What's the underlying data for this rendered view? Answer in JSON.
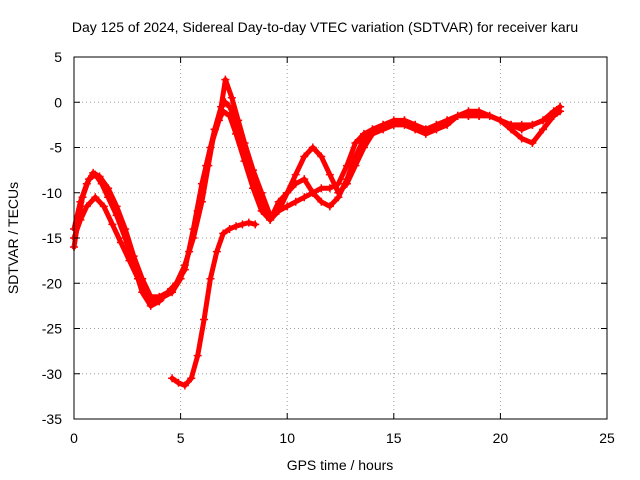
{
  "chart_data": {
    "type": "line",
    "title": "Day 125 of 2024, Sidereal Day-to-day VTEC variation (SDTVAR) for receiver karu",
    "xlabel": "GPS time / hours",
    "ylabel": "SDTVAR / TECUs",
    "xlim": [
      0,
      25
    ],
    "ylim": [
      -35,
      5
    ],
    "xticks": [
      0,
      5,
      10,
      15,
      20,
      25
    ],
    "yticks": [
      5,
      0,
      -5,
      -10,
      -15,
      -20,
      -25,
      -30,
      -35
    ],
    "xtick_labels": [
      "0",
      "5",
      "10",
      "15",
      "20",
      "25"
    ],
    "ytick_labels": [
      "5",
      "0",
      "-5",
      "-10",
      "-15",
      "-20",
      "-25",
      "-30",
      "-35"
    ],
    "grid": true,
    "legend": "none",
    "marker": "plus",
    "color": "#ff0000",
    "series": [
      {
        "name": "track-1",
        "x": [
          0.0,
          0.2,
          0.4,
          0.7,
          1.0,
          1.3,
          1.6,
          2.0,
          2.4,
          2.8,
          3.2,
          3.6,
          4.0,
          4.4,
          4.8,
          5.2,
          5.6,
          6.0,
          6.3,
          6.6,
          6.9,
          7.1,
          7.3,
          7.6,
          8.0,
          8.4,
          8.8,
          9.2,
          9.6,
          10.0,
          10.4,
          10.8,
          11.2,
          11.6,
          12.0,
          12.4,
          12.8,
          13.2,
          13.6,
          14.0,
          14.5,
          15.0,
          15.5,
          16.0,
          16.5,
          17.0,
          17.5,
          18.0,
          18.5,
          19.0,
          19.5,
          20.0,
          20.5,
          21.0,
          21.5,
          22.0,
          22.5,
          22.8
        ],
        "y": [
          -16,
          -13,
          -10.5,
          -8.5,
          -8.0,
          -9.0,
          -10.5,
          -12.5,
          -15,
          -18,
          -21,
          -22.5,
          -22,
          -21,
          -20,
          -18,
          -15,
          -11,
          -7,
          -3,
          -0.5,
          0,
          -0.5,
          -2,
          -5,
          -8,
          -11,
          -13,
          -12,
          -10,
          -8,
          -6,
          -5,
          -6,
          -8,
          -10,
          -9,
          -7,
          -5,
          -3.5,
          -3,
          -2.5,
          -2,
          -2.5,
          -3,
          -2.5,
          -2,
          -1.5,
          -1.5,
          -1.5,
          -1.5,
          -2,
          -3,
          -4,
          -4.5,
          -3,
          -1.5,
          -0.5
        ]
      },
      {
        "name": "track-2",
        "x": [
          0.0,
          0.3,
          0.6,
          1.0,
          1.4,
          1.8,
          2.2,
          2.6,
          3.0,
          3.4,
          3.8,
          4.2,
          4.6,
          5.0,
          5.4,
          5.8,
          6.2,
          6.6,
          7.0,
          7.3,
          7.6,
          8.0,
          8.4,
          8.8,
          9.2,
          9.6,
          10.0,
          10.4,
          10.8,
          11.2,
          11.6,
          12.0,
          12.4,
          12.8,
          13.2,
          13.6,
          14.0,
          14.5,
          15.0,
          15.5,
          16.0,
          16.5,
          17.0,
          17.5,
          18.0,
          18.5,
          19.0,
          19.5,
          20.0,
          20.5,
          21.0,
          21.5,
          22.0,
          22.5,
          22.8
        ],
        "y": [
          -15,
          -13,
          -11.5,
          -10.5,
          -11.5,
          -13.5,
          -15.5,
          -17.5,
          -19.5,
          -21.5,
          -22,
          -21.5,
          -21,
          -19.5,
          -16.5,
          -12,
          -7,
          -3,
          -1,
          -1.5,
          -3.5,
          -6.5,
          -9.5,
          -12,
          -13,
          -11,
          -10,
          -9,
          -8.5,
          -10,
          -11,
          -11.5,
          -10.5,
          -8.5,
          -6,
          -4,
          -3,
          -2.5,
          -2.5,
          -2.5,
          -3,
          -3.5,
          -3,
          -2.5,
          -1.5,
          -1,
          -1,
          -1.5,
          -2,
          -2.5,
          -2.5,
          -2.5,
          -2,
          -1.5,
          -1
        ]
      },
      {
        "name": "track-3",
        "x": [
          0.0,
          0.3,
          0.6,
          0.9,
          1.2,
          1.6,
          2.0,
          2.4,
          2.8,
          3.2,
          3.6,
          4.0,
          4.4,
          4.8,
          5.2,
          5.6,
          6.0,
          6.4,
          6.8,
          7.1,
          7.4,
          7.7,
          8.0,
          8.4,
          8.8,
          9.2,
          9.6,
          10.0,
          10.4,
          10.8,
          11.2,
          11.6,
          12.0,
          12.4,
          12.8,
          13.2,
          13.6,
          14.0,
          14.5,
          15.0,
          15.5,
          16.0,
          16.5,
          17.0,
          17.5,
          18.0,
          18.5,
          19.0,
          19.5,
          20.0,
          20.5,
          21.0,
          21.5,
          22.0,
          22.5,
          22.8
        ],
        "y": [
          -14,
          -11,
          -9,
          -7.8,
          -8.2,
          -9.5,
          -11.5,
          -14,
          -17,
          -19.5,
          -21.5,
          -21.5,
          -21,
          -20,
          -18.5,
          -14,
          -9,
          -5,
          -2,
          2.5,
          0.5,
          -2,
          -4.5,
          -7.5,
          -10,
          -12.5,
          -12,
          -11.5,
          -11,
          -10.5,
          -10,
          -9.5,
          -9.5,
          -9,
          -7,
          -4.5,
          -3.5,
          -3,
          -2.5,
          -2,
          -2,
          -2.5,
          -3,
          -2.5,
          -2,
          -1.5,
          -1.5,
          -1.5,
          -1.5,
          -2,
          -2.5,
          -3,
          -2.5,
          -2,
          -1,
          -0.5
        ]
      },
      {
        "name": "track-4",
        "x": [
          4.6,
          4.9,
          5.2,
          5.5,
          5.8,
          6.1,
          6.4,
          6.7,
          7.0,
          7.3,
          7.6,
          7.9,
          8.2,
          8.5
        ],
        "y": [
          -30.5,
          -31,
          -31.3,
          -30.5,
          -28,
          -24,
          -19.5,
          -16.5,
          -14.5,
          -14,
          -13.7,
          -13.5,
          -13.3,
          -13.5
        ]
      }
    ]
  }
}
